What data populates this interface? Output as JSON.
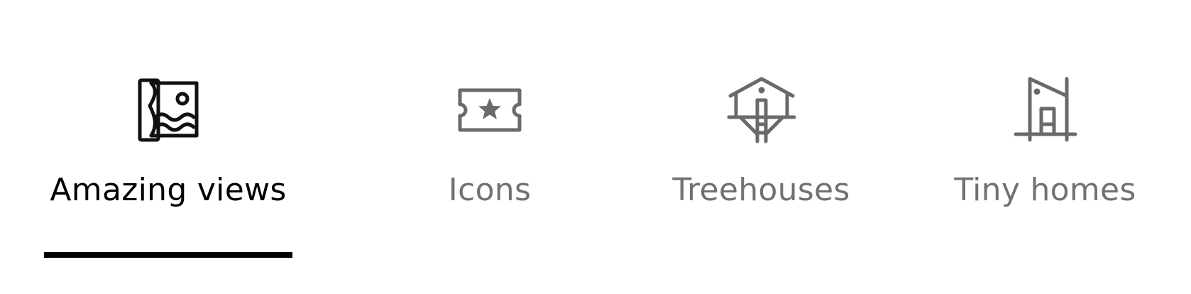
{
  "categories": {
    "tabs": [
      {
        "label": "Amazing views",
        "icon": "amazing-views-icon",
        "selected": true
      },
      {
        "label": "Icons",
        "icon": "ticket-star-icon",
        "selected": false
      },
      {
        "label": "Treehouses",
        "icon": "treehouse-icon",
        "selected": false
      },
      {
        "label": "Tiny homes",
        "icon": "tiny-home-icon",
        "selected": false
      }
    ]
  },
  "colors": {
    "active_text": "#000000",
    "inactive_text": "#717171",
    "underline": "#000000"
  }
}
